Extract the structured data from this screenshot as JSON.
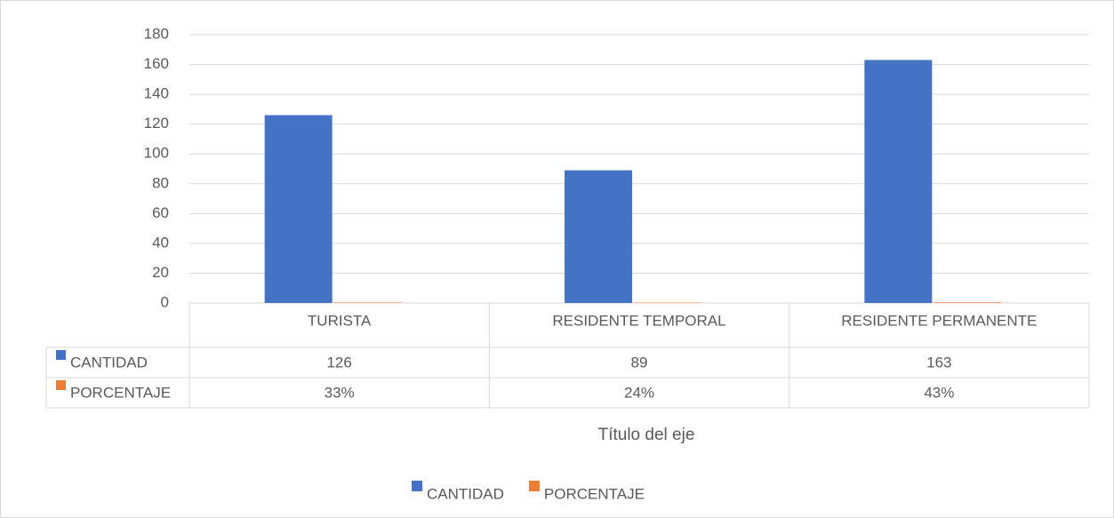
{
  "chart_data": {
    "type": "bar",
    "axis_title": "Título del eje",
    "categories": [
      "TURISTA",
      "RESIDENTE TEMPORAL",
      "RESIDENTE PERMANENTE"
    ],
    "series": [
      {
        "name": "CANTIDAD",
        "color": "#4472c4",
        "values": [
          126,
          89,
          163
        ]
      },
      {
        "name": "PORCENTAJE",
        "color": "#ed7d31",
        "values": [
          0.33,
          0.24,
          0.43
        ],
        "value_labels": [
          "33%",
          "24%",
          "43%"
        ]
      }
    ],
    "ylim": [
      0,
      180
    ],
    "yticks": [
      0,
      20,
      40,
      60,
      80,
      100,
      120,
      140,
      160,
      180
    ],
    "grid": true,
    "legend": "bottom"
  }
}
